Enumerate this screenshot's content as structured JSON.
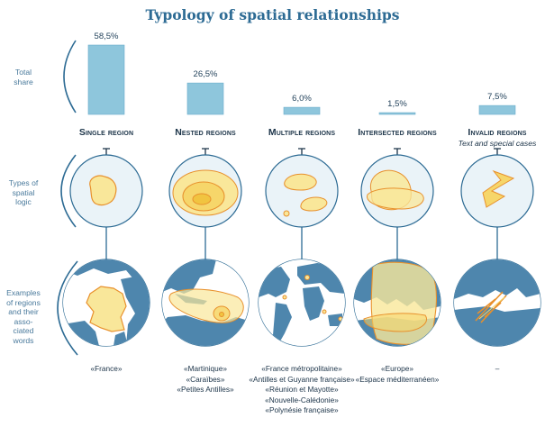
{
  "title": "Typology of spatial relationships",
  "rows": {
    "total_share": "Total share",
    "types": "Types of spatial logic",
    "examples": "Examples of regions and their associated words"
  },
  "row_label_lines": {
    "total_share": [
      "Total",
      "share"
    ],
    "types": [
      "Types of",
      "spatial",
      "logic"
    ],
    "examples": [
      "Examples",
      "of regions",
      "and their",
      "asso-",
      "ciated",
      "words"
    ]
  },
  "colors": {
    "title": "#2d6b94",
    "bar": "#8ec6dc",
    "bar_edge": "#6aaecb",
    "region_fill": "#f9e79a",
    "region_edge": "#e8902c",
    "sea": "#ffffff",
    "land": "#4e86ad"
  },
  "categories": [
    {
      "name": "Single region",
      "subtitle": "",
      "share": "58,5%",
      "value": 58.5,
      "examples": [
        "«France»"
      ]
    },
    {
      "name": "Nested regions",
      "subtitle": "",
      "share": "26,5%",
      "value": 26.5,
      "examples": [
        "«Martinique»",
        "«Caraïbes»",
        "«Petites Antilles»"
      ]
    },
    {
      "name": "Multiple regions",
      "subtitle": "",
      "share": "6,0%",
      "value": 6.0,
      "examples": [
        "«France métropolitaine»",
        "«Antilles et Guyanne française»",
        "«Réunion et Mayotte»",
        "«Nouvelle-Calédonie»",
        "«Polynésie française»"
      ]
    },
    {
      "name": "Intersected regions",
      "subtitle": "",
      "share": "1,5%",
      "value": 1.5,
      "examples": [
        "«Europe»",
        "«Espace méditerranéen»"
      ]
    },
    {
      "name": "Invalid regions",
      "subtitle": "Text and special cases",
      "share": "7,5%",
      "value": 7.5,
      "examples": [
        "–"
      ]
    }
  ],
  "icons": [
    "bracket-icon",
    "pin-icon",
    "globe-icon",
    "france-map-icon",
    "caribbean-map-icon",
    "world-map-icon",
    "europe-map-icon"
  ]
}
